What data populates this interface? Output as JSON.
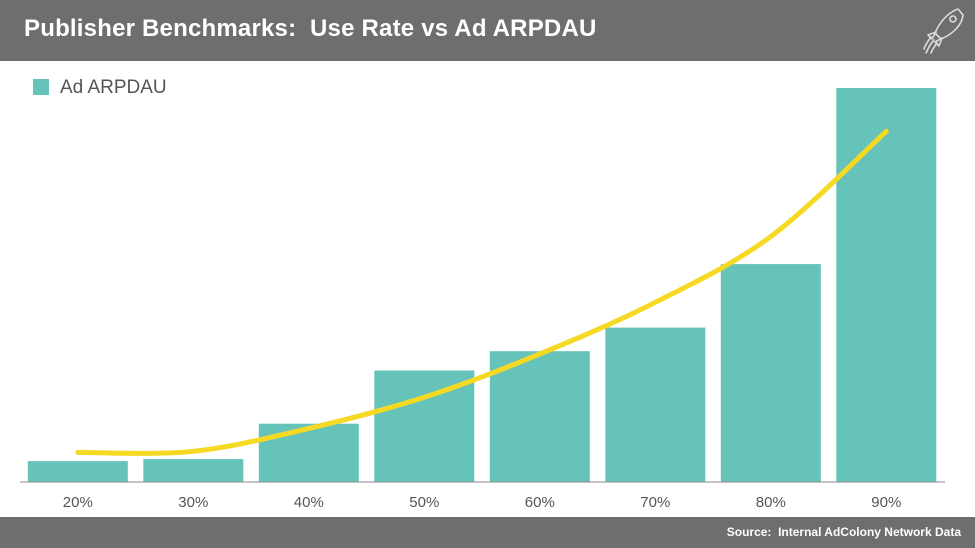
{
  "header": {
    "title": "Publisher Benchmarks:  Use Rate vs Ad ARPDAU"
  },
  "footer": {
    "source": "Source:  Internal AdColony Network Data"
  },
  "colors": {
    "header_bg": "#6e6e6e",
    "bar": "#66c3b9",
    "trend": "#f5d923",
    "axis": "#8a8a8a",
    "tick_text": "#555555"
  },
  "logo_icon": "rocket-icon",
  "chart_data": {
    "type": "bar",
    "categories": [
      "20%",
      "30%",
      "40%",
      "50%",
      "60%",
      "70%",
      "80%",
      "90%"
    ],
    "series": [
      {
        "name": "Ad ARPDAU",
        "values": [
          5.3,
          5.8,
          14.8,
          28.3,
          33.2,
          39.2,
          55.3,
          100
        ]
      }
    ],
    "trendline": {
      "type": "curve",
      "values": [
        7.5,
        7.8,
        13.6,
        21.5,
        32.5,
        45.6,
        62.3,
        89.0
      ]
    },
    "ylim": [
      0,
      100
    ],
    "xlabel": "",
    "ylabel": "",
    "grid": false,
    "legend": "top-left"
  }
}
